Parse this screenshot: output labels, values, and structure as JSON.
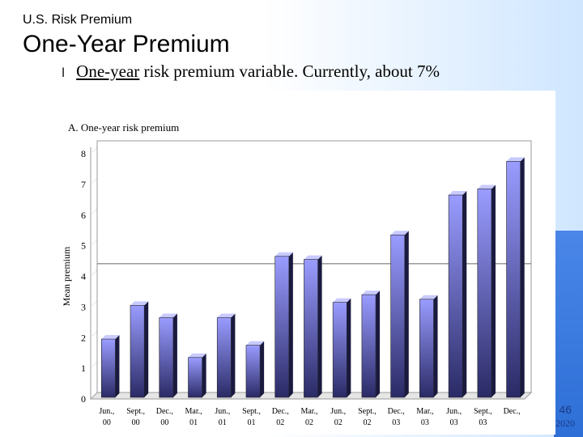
{
  "slide": {
    "subtitle": "U.S. Risk Premium",
    "title": "One-Year Premium",
    "bullet_glyph": "l",
    "bullet_underlined": "One-year",
    "bullet_rest": " risk premium variable. Currently, about 7%",
    "page_number": "46",
    "year": "2020"
  },
  "colors": {
    "bar_top": "#9a9cff",
    "bar_bottom": "#2a2a66",
    "bar_side": "#1a1a40",
    "bar_cap": "#c9caff",
    "accent_band": "#3a7be0"
  },
  "chart_data": {
    "type": "bar",
    "title": "A. One-year risk premium",
    "ylabel": "Mean premium",
    "xlabel": "",
    "ylim": [
      0,
      8
    ],
    "yticks": [
      0,
      1,
      2,
      3,
      4,
      5,
      6,
      7,
      8
    ],
    "reference_line": 4.2,
    "categories": [
      {
        "line1": "Jun.,",
        "line2": "00"
      },
      {
        "line1": "Sept.,",
        "line2": "00"
      },
      {
        "line1": "Dec.,",
        "line2": "00"
      },
      {
        "line1": "Mar.,",
        "line2": "01"
      },
      {
        "line1": "Jun.,",
        "line2": "01"
      },
      {
        "line1": "Sept.,",
        "line2": "01"
      },
      {
        "line1": "Dec.,",
        "line2": "02"
      },
      {
        "line1": "Mar.,",
        "line2": "02"
      },
      {
        "line1": "Jun.,",
        "line2": "02"
      },
      {
        "line1": "Sept.,",
        "line2": "02"
      },
      {
        "line1": "Dec.,",
        "line2": "03"
      },
      {
        "line1": "Mar.,",
        "line2": "03"
      },
      {
        "line1": "Jun.,",
        "line2": "03"
      },
      {
        "line1": "Sept.,",
        "line2": "03"
      },
      {
        "line1": "Dec.,",
        "line2": ""
      }
    ],
    "values": [
      1.9,
      3.0,
      2.6,
      1.3,
      2.6,
      1.7,
      4.6,
      4.5,
      3.1,
      3.35,
      5.3,
      3.2,
      6.6,
      6.8,
      7.7
    ]
  }
}
